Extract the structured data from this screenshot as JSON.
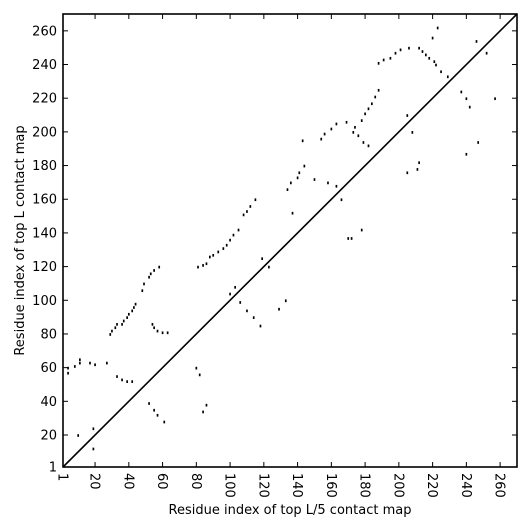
{
  "chart_data": {
    "type": "scatter",
    "title": "",
    "xlabel": "Residue index of top L/5 contact map",
    "ylabel": "Residue index of top L contact map",
    "xlim": [
      1,
      270
    ],
    "ylim": [
      1,
      270
    ],
    "x_ticks": [
      1,
      20,
      40,
      60,
      80,
      100,
      120,
      140,
      160,
      180,
      200,
      220,
      240,
      260
    ],
    "y_ticks": [
      1,
      20,
      40,
      60,
      80,
      100,
      120,
      140,
      160,
      180,
      200,
      220,
      240,
      260
    ],
    "grid": false,
    "legend": "none",
    "diagonal": [
      [
        1,
        1
      ],
      [
        270,
        270
      ]
    ],
    "series": [
      {
        "color": "#000000",
        "points": [
          [
            4,
            57
          ],
          [
            4,
            60
          ],
          [
            8,
            61
          ],
          [
            11,
            63
          ],
          [
            11,
            65
          ],
          [
            17,
            63
          ],
          [
            27,
            63
          ],
          [
            29,
            80
          ],
          [
            30,
            82
          ],
          [
            32,
            84
          ],
          [
            33,
            86
          ],
          [
            36,
            86
          ],
          [
            37,
            88
          ],
          [
            39,
            90
          ],
          [
            40,
            92
          ],
          [
            42,
            94
          ],
          [
            43,
            96
          ],
          [
            44,
            98
          ],
          [
            48,
            106
          ],
          [
            49,
            110
          ],
          [
            52,
            114
          ],
          [
            53,
            116
          ],
          [
            55,
            118
          ],
          [
            58,
            120
          ],
          [
            54,
            86
          ],
          [
            55,
            84
          ],
          [
            57,
            82
          ],
          [
            60,
            81
          ],
          [
            63,
            81
          ],
          [
            81,
            120
          ],
          [
            84,
            121
          ],
          [
            86,
            122
          ],
          [
            88,
            126
          ],
          [
            90,
            127
          ],
          [
            93,
            129
          ],
          [
            96,
            131
          ],
          [
            98,
            133
          ],
          [
            100,
            136
          ],
          [
            102,
            139
          ],
          [
            105,
            142
          ],
          [
            108,
            151
          ],
          [
            110,
            153
          ],
          [
            112,
            156
          ],
          [
            115,
            160
          ],
          [
            134,
            166
          ],
          [
            136,
            170
          ],
          [
            140,
            173
          ],
          [
            141,
            176
          ],
          [
            144,
            180
          ],
          [
            154,
            196
          ],
          [
            156,
            199
          ],
          [
            160,
            202
          ],
          [
            163,
            205
          ],
          [
            174,
            203
          ],
          [
            178,
            207
          ],
          [
            180,
            211
          ],
          [
            182,
            214
          ],
          [
            184,
            217
          ],
          [
            186,
            221
          ],
          [
            188,
            225
          ],
          [
            188,
            241
          ],
          [
            191,
            243
          ],
          [
            195,
            244
          ],
          [
            198,
            247
          ],
          [
            201,
            249
          ],
          [
            206,
            250
          ],
          [
            212,
            250
          ],
          [
            214,
            248
          ],
          [
            216,
            246
          ],
          [
            218,
            244
          ],
          [
            221,
            242
          ],
          [
            222,
            240
          ],
          [
            220,
            256
          ],
          [
            223,
            262
          ],
          [
            225,
            236
          ],
          [
            229,
            233
          ],
          [
            205,
            210
          ],
          [
            208,
            200
          ],
          [
            211,
            178
          ],
          [
            212,
            182
          ],
          [
            205,
            176
          ],
          [
            169,
            206
          ],
          [
            173,
            200
          ],
          [
            176,
            198
          ],
          [
            179,
            194
          ],
          [
            182,
            192
          ],
          [
            150,
            172
          ],
          [
            158,
            170
          ],
          [
            163,
            168
          ],
          [
            80,
            60
          ],
          [
            82,
            56
          ],
          [
            86,
            38
          ],
          [
            84,
            34
          ],
          [
            20,
            62
          ],
          [
            10,
            20
          ],
          [
            19,
            12
          ],
          [
            19,
            24
          ],
          [
            33,
            55
          ],
          [
            36,
            53
          ],
          [
            39,
            52
          ],
          [
            42,
            52
          ],
          [
            52,
            39
          ],
          [
            55,
            35
          ],
          [
            57,
            32
          ],
          [
            61,
            28
          ],
          [
            100,
            104
          ],
          [
            103,
            108
          ],
          [
            106,
            99
          ],
          [
            110,
            94
          ],
          [
            114,
            90
          ],
          [
            118,
            85
          ],
          [
            123,
            120
          ],
          [
            119,
            125
          ],
          [
            129,
            95
          ],
          [
            133,
            100
          ],
          [
            137,
            152
          ],
          [
            143,
            195
          ],
          [
            166,
            160
          ],
          [
            170,
            137
          ],
          [
            172,
            137
          ],
          [
            178,
            142
          ],
          [
            237,
            224
          ],
          [
            240,
            220
          ],
          [
            242,
            215
          ],
          [
            246,
            254
          ],
          [
            247,
            194
          ],
          [
            240,
            187
          ],
          [
            252,
            247
          ],
          [
            257,
            220
          ]
        ]
      }
    ]
  }
}
